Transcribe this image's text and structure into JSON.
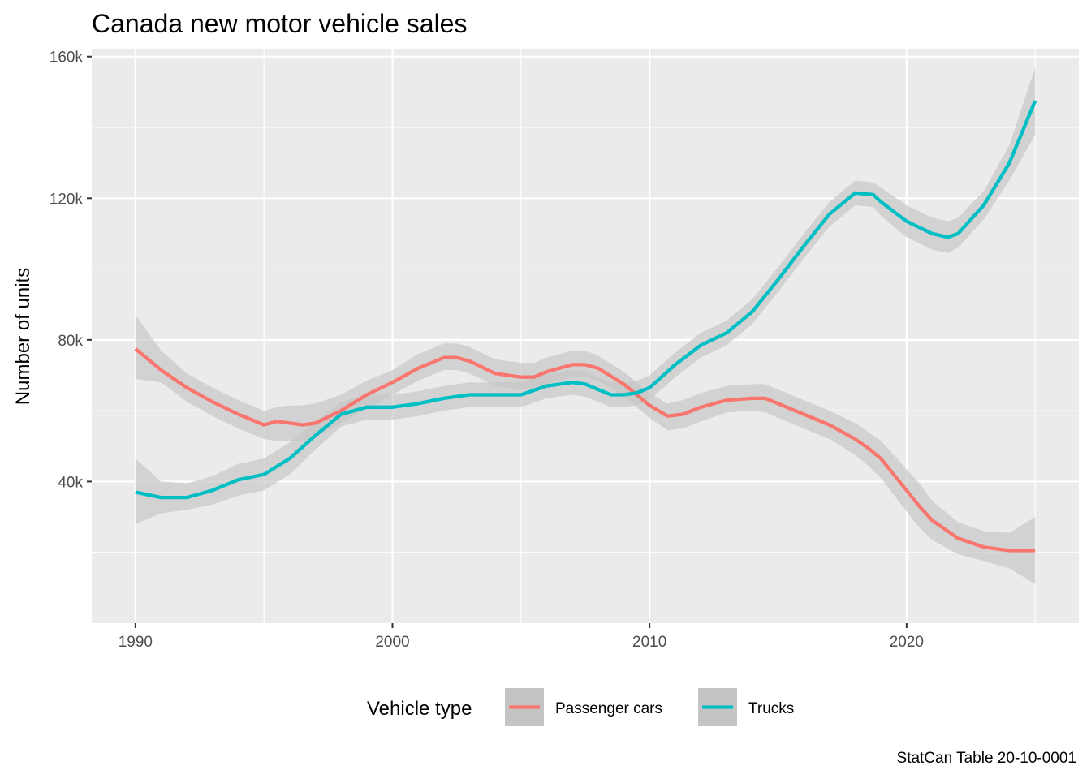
{
  "chart_data": {
    "type": "line",
    "title": "Canada new motor vehicle sales",
    "xlabel": "",
    "ylabel": "Number of units",
    "xlim": [
      1988.3,
      2026.7
    ],
    "ylim": [
      0,
      162000
    ],
    "x_ticks": [
      1990,
      2000,
      2010,
      2020
    ],
    "x_tick_labels": [
      "1990",
      "2000",
      "2010",
      "2020"
    ],
    "y_ticks": [
      40000,
      80000,
      120000,
      160000
    ],
    "y_tick_labels": [
      "40k",
      "80k",
      "120k",
      "160k"
    ],
    "grid": true,
    "legend": {
      "title": "Vehicle type",
      "placement": "bottom",
      "entries": [
        "Passenger cars",
        "Trucks"
      ]
    },
    "caption": "StatCan Table 20-10-0001",
    "background": "#ebebeb",
    "band_color": "#c4c4c4",
    "series": [
      {
        "name": "Passenger cars",
        "color": "#f8766d",
        "x": [
          1990,
          1991,
          1992,
          1993,
          1994,
          1995,
          1995.5,
          1996,
          1996.5,
          1997,
          1998,
          1999,
          2000,
          2001,
          2002,
          2002.5,
          2003,
          2004,
          2005,
          2005.5,
          2006,
          2007,
          2007.5,
          2008,
          2009,
          2010,
          2010.7,
          2011.3,
          2012,
          2013,
          2014,
          2014.5,
          2015,
          2016,
          2017,
          2018,
          2018.5,
          2019,
          2020,
          2020.5,
          2021,
          2022,
          2023,
          2024,
          2025
        ],
        "y": [
          77500,
          71500,
          66500,
          62500,
          59000,
          56000,
          57000,
          56500,
          56000,
          56500,
          60000,
          64500,
          68000,
          72000,
          75000,
          75000,
          74000,
          70500,
          69500,
          69500,
          71000,
          73000,
          73000,
          72000,
          67500,
          61500,
          58500,
          59000,
          61000,
          63000,
          63500,
          63500,
          62000,
          59000,
          56000,
          52000,
          49500,
          46500,
          37500,
          33000,
          29000,
          24000,
          21500,
          20500,
          20500
        ],
        "lower": [
          69000,
          68000,
          62500,
          58500,
          55000,
          52000,
          51500,
          51500,
          51500,
          52500,
          56500,
          60500,
          64500,
          68500,
          71500,
          71500,
          70500,
          67000,
          66000,
          66000,
          67500,
          69500,
          69500,
          68500,
          64000,
          58000,
          54500,
          55000,
          57000,
          59500,
          60000,
          59500,
          58000,
          55000,
          52000,
          47500,
          44500,
          41000,
          31500,
          27000,
          23500,
          19500,
          17500,
          15500,
          11000
        ],
        "upper": [
          87000,
          77000,
          70500,
          66500,
          63000,
          60000,
          61000,
          61500,
          61500,
          62000,
          64500,
          68500,
          71500,
          76000,
          79000,
          79000,
          78000,
          74500,
          73500,
          73500,
          75000,
          77000,
          77000,
          75500,
          71000,
          65000,
          62000,
          63000,
          65000,
          67000,
          67500,
          67500,
          66000,
          63000,
          60000,
          56500,
          54000,
          51500,
          43500,
          39500,
          34500,
          28500,
          26000,
          25500,
          30000
        ]
      },
      {
        "name": "Trucks",
        "color": "#00bfc4",
        "x": [
          1990,
          1991,
          1992,
          1993,
          1994,
          1995,
          1996,
          1997,
          1998,
          1999,
          2000,
          2001,
          2002,
          2003,
          2004,
          2005,
          2006,
          2007,
          2007.5,
          2008,
          2008.5,
          2009,
          2009.5,
          2010,
          2011,
          2012,
          2013,
          2014,
          2015,
          2016,
          2017,
          2018,
          2018.7,
          2019,
          2020,
          2021,
          2021.6,
          2022,
          2023,
          2024,
          2025
        ],
        "y": [
          37000,
          35500,
          35500,
          37500,
          40500,
          42000,
          46500,
          53000,
          59000,
          61000,
          61000,
          62000,
          63500,
          64500,
          64500,
          64500,
          67000,
          68000,
          67500,
          66000,
          64500,
          64500,
          65000,
          66500,
          73000,
          78500,
          82000,
          88000,
          97000,
          106500,
          115500,
          121500,
          121000,
          119000,
          113500,
          110000,
          109000,
          110000,
          118000,
          130000,
          147500
        ],
        "lower": [
          28000,
          31000,
          32000,
          33500,
          36000,
          37500,
          42000,
          49000,
          55500,
          57500,
          57500,
          58500,
          60000,
          61000,
          61000,
          61000,
          63500,
          64500,
          64000,
          62500,
          61000,
          61000,
          61500,
          63000,
          69500,
          75000,
          78500,
          84500,
          93500,
          103000,
          112000,
          118000,
          117500,
          115000,
          109000,
          105500,
          104500,
          106000,
          114000,
          125000,
          138000
        ],
        "upper": [
          46500,
          40000,
          39500,
          41500,
          45000,
          46500,
          51000,
          57000,
          62500,
          64500,
          64500,
          65500,
          67000,
          68000,
          68000,
          68000,
          70500,
          71500,
          71000,
          69500,
          68000,
          68000,
          68500,
          70000,
          76500,
          82000,
          85500,
          91500,
          100500,
          110000,
          119000,
          125000,
          124500,
          123000,
          118000,
          114500,
          113500,
          114500,
          122000,
          135000,
          157000
        ]
      }
    ]
  }
}
